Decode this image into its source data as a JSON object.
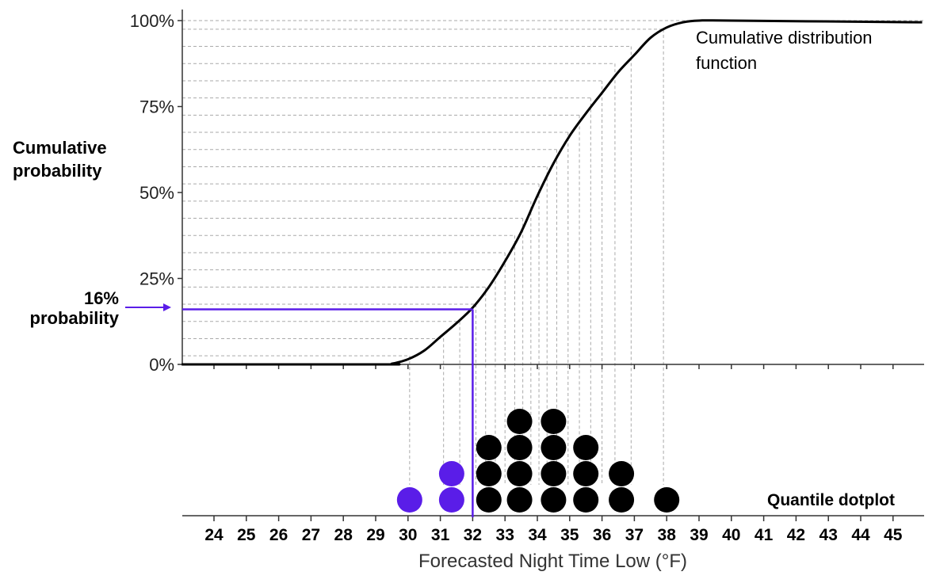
{
  "chart_data": {
    "type": "line",
    "xlabel": "Forecasted Night Time Low (°F)",
    "ylabel_line1": "Cumulative",
    "ylabel_line2": "probability",
    "curve_label_line1": "Cumulative distribution",
    "curve_label_line2": "function",
    "dotplot_label": "Quantile dotplot",
    "annotation_value": "16%",
    "annotation_text": "probability",
    "annotation_x": 32,
    "annotation_y": 0.16,
    "xlim": [
      23,
      46
    ],
    "ylim": [
      0,
      1
    ],
    "x_ticks": [
      24,
      25,
      26,
      27,
      28,
      29,
      30,
      31,
      32,
      33,
      34,
      35,
      36,
      37,
      38,
      39,
      40,
      41,
      42,
      43,
      44,
      45
    ],
    "y_ticks": [
      {
        "value": 0,
        "label": "0%"
      },
      {
        "value": 0.25,
        "label": "25%"
      },
      {
        "value": 0.5,
        "label": "50%"
      },
      {
        "value": 0.75,
        "label": "75%"
      },
      {
        "value": 1,
        "label": "100%"
      }
    ],
    "cdf_curve": {
      "x": [
        23,
        29.2,
        29.5,
        30,
        30.5,
        31,
        31.5,
        32,
        32.5,
        33,
        33.5,
        34,
        34.5,
        35,
        35.5,
        36,
        36.5,
        37,
        37.5,
        38,
        38.5,
        39,
        40,
        45.9
      ],
      "y": [
        0,
        0,
        0.002,
        0.015,
        0.04,
        0.08,
        0.12,
        0.165,
        0.225,
        0.3,
        0.385,
        0.49,
        0.585,
        0.665,
        0.73,
        0.79,
        0.85,
        0.9,
        0.95,
        0.98,
        0.995,
        1.0,
        1.0,
        0.995
      ]
    },
    "quantile_lines": [
      {
        "x": 30.05,
        "y": 0.025
      },
      {
        "x": 31.1,
        "y": 0.075
      },
      {
        "x": 31.6,
        "y": 0.125
      },
      {
        "x": 32.1,
        "y": 0.175
      },
      {
        "x": 32.4,
        "y": 0.225
      },
      {
        "x": 32.7,
        "y": 0.275
      },
      {
        "x": 33.0,
        "y": 0.325
      },
      {
        "x": 33.3,
        "y": 0.375
      },
      {
        "x": 33.55,
        "y": 0.425
      },
      {
        "x": 33.8,
        "y": 0.475
      },
      {
        "x": 34.05,
        "y": 0.525
      },
      {
        "x": 34.3,
        "y": 0.575
      },
      {
        "x": 34.6,
        "y": 0.625
      },
      {
        "x": 34.95,
        "y": 0.675
      },
      {
        "x": 35.3,
        "y": 0.725
      },
      {
        "x": 35.65,
        "y": 0.775
      },
      {
        "x": 36.0,
        "y": 0.825
      },
      {
        "x": 36.4,
        "y": 0.875
      },
      {
        "x": 36.9,
        "y": 0.925
      },
      {
        "x": 37.9,
        "y": 0.975
      }
    ],
    "dotplot": [
      {
        "x": 30.05,
        "count": 1,
        "highlight": true
      },
      {
        "x": 31.35,
        "count": 2,
        "highlight": true
      },
      {
        "x": 32.5,
        "count": 3,
        "highlight": false
      },
      {
        "x": 33.45,
        "count": 4,
        "highlight": false
      },
      {
        "x": 34.5,
        "count": 4,
        "highlight": false
      },
      {
        "x": 35.5,
        "count": 3,
        "highlight": false
      },
      {
        "x": 36.6,
        "count": 2,
        "highlight": false
      },
      {
        "x": 38.0,
        "count": 1,
        "highlight": false
      }
    ],
    "grid": true,
    "colors": {
      "highlight": "#5a1de8",
      "dots": "#000000",
      "grid": "#aaaaaa",
      "axis": "#333333"
    }
  }
}
